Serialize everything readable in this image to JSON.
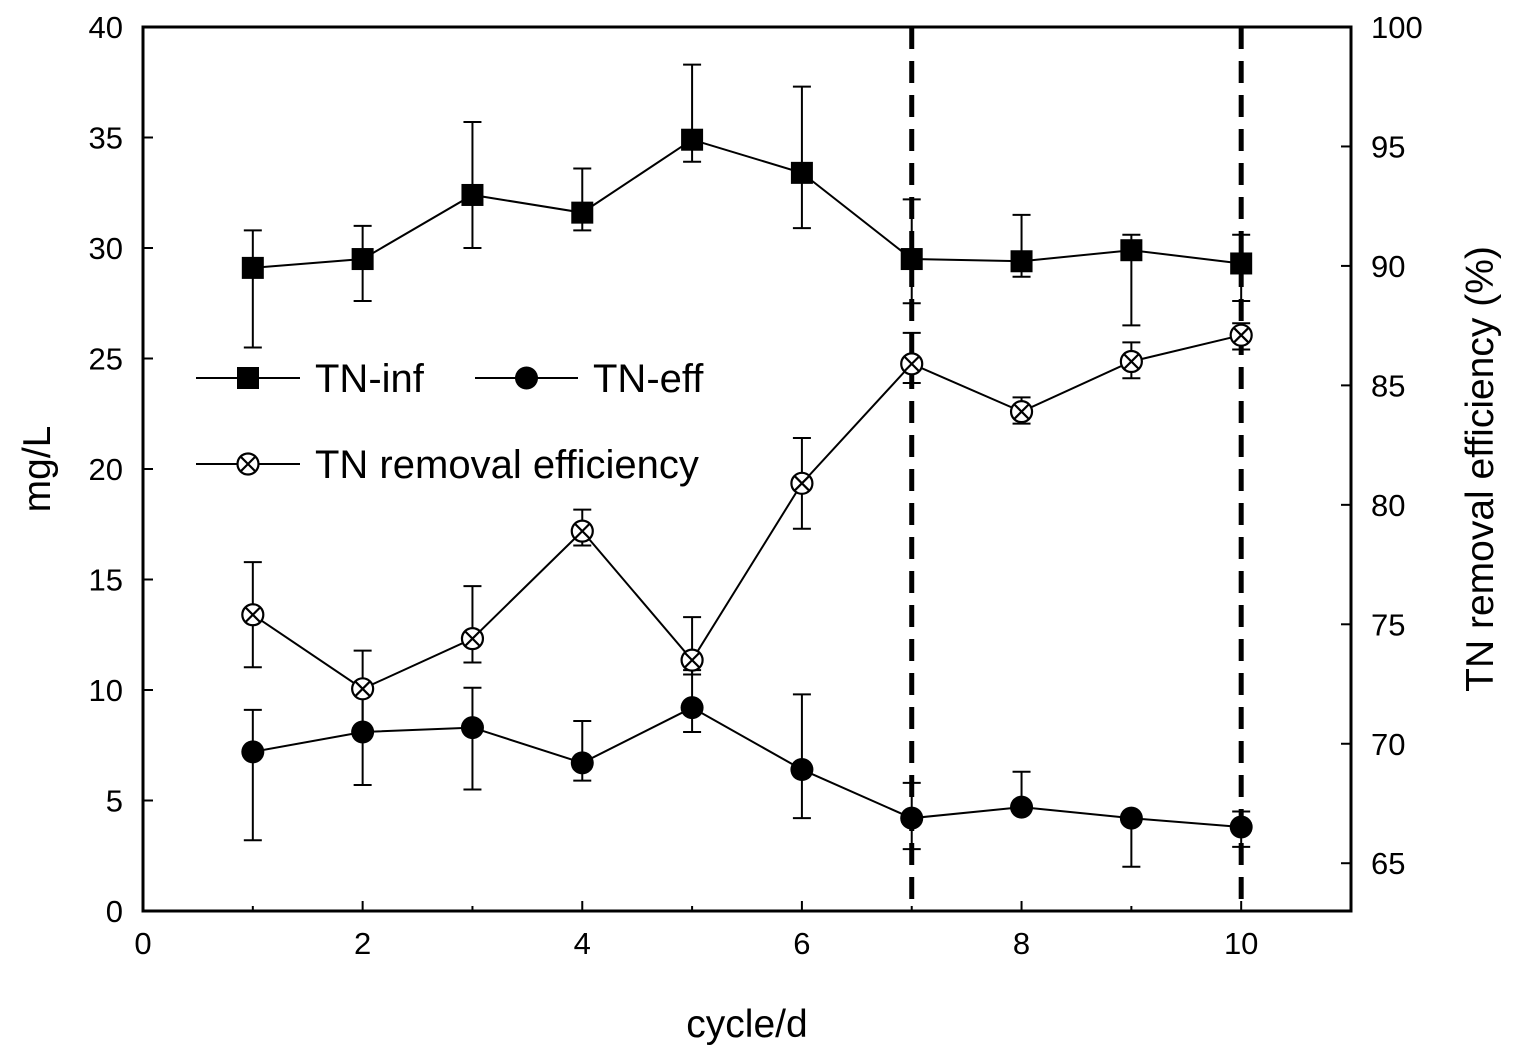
{
  "chart_data": {
    "type": "line",
    "x": [
      1,
      2,
      3,
      4,
      5,
      6,
      7,
      8,
      9,
      10
    ],
    "xlabel": "cycle/d",
    "xlim": [
      0,
      11
    ],
    "x_ticks": [
      "0",
      "2",
      "4",
      "6",
      "8",
      "10"
    ],
    "ylabel": "mg/L",
    "ylim": [
      0,
      40
    ],
    "y_ticks": [
      "0",
      "5",
      "10",
      "15",
      "20",
      "25",
      "30",
      "35",
      "40"
    ],
    "y2label": "TN removal efficiency (%)",
    "y2lim": [
      63,
      100
    ],
    "y2_ticks": [
      "65",
      "70",
      "75",
      "80",
      "85",
      "90",
      "95",
      "100"
    ],
    "vertical_dashed_lines_at_x": [
      7,
      10
    ],
    "series": [
      {
        "name": "TN-inf",
        "axis": "left",
        "marker": "square",
        "values": [
          29.1,
          29.5,
          32.4,
          31.6,
          34.9,
          33.4,
          29.5,
          29.4,
          29.9,
          29.3
        ],
        "err_low": [
          25.5,
          27.6,
          30.0,
          30.8,
          33.9,
          30.9,
          27.5,
          28.7,
          26.5,
          27.6
        ],
        "err_high": [
          30.8,
          31.0,
          35.7,
          33.6,
          38.3,
          37.3,
          32.2,
          31.5,
          30.6,
          30.6
        ]
      },
      {
        "name": "TN-eff",
        "axis": "left",
        "marker": "circle",
        "values": [
          7.2,
          8.1,
          8.3,
          6.7,
          9.2,
          6.4,
          4.2,
          4.7,
          4.2,
          3.8
        ],
        "err_low": [
          3.2,
          5.7,
          5.5,
          5.9,
          8.1,
          4.2,
          2.8,
          4.5,
          2.0,
          2.9
        ],
        "err_high": [
          9.1,
          9.9,
          10.1,
          8.6,
          10.9,
          9.8,
          5.8,
          6.3,
          4.4,
          4.5
        ]
      },
      {
        "name": "TN removal efficiency",
        "axis": "right",
        "marker": "circled-x",
        "values": [
          75.4,
          72.3,
          74.4,
          78.9,
          73.5,
          80.9,
          85.9,
          83.9,
          86.0,
          87.1
        ],
        "err_low": [
          73.2,
          70.7,
          73.4,
          78.3,
          72.9,
          79.0,
          85.1,
          83.4,
          85.3,
          86.5
        ],
        "err_high": [
          77.6,
          73.9,
          76.6,
          79.8,
          75.3,
          82.8,
          87.2,
          84.5,
          86.8,
          87.6
        ]
      }
    ],
    "legend": {
      "placement": "center-left",
      "entries": [
        "TN-inf",
        "TN-eff",
        "TN removal efficiency"
      ]
    }
  }
}
